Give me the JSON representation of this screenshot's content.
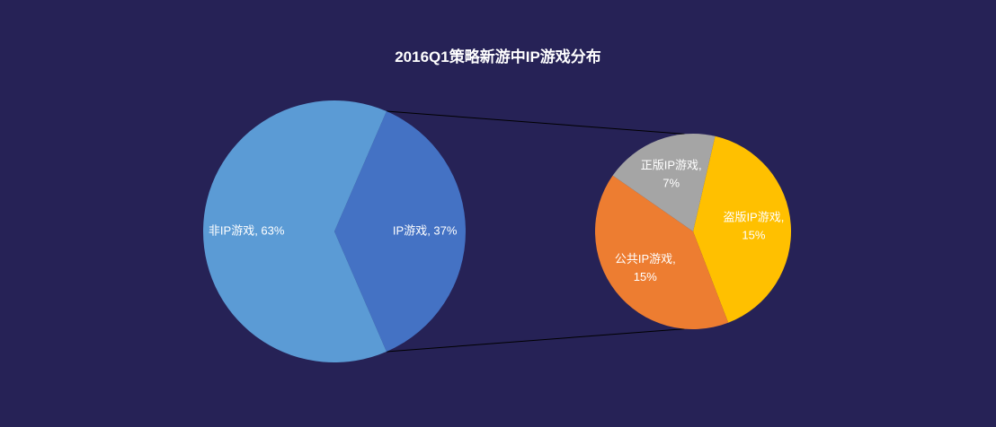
{
  "chart_data": {
    "type": "pie",
    "subtype": "pie-of-pie",
    "title": "2016Q1策略新游中IP游戏分布",
    "primary": {
      "slices": [
        {
          "name": "IP游戏",
          "value": 37,
          "label_line1": "IP游戏, 37%",
          "label_line2": "",
          "color": "#4472C4"
        },
        {
          "name": "非IP游戏",
          "value": 63,
          "label_line1": "非IP游戏, 63%",
          "label_line2": "",
          "color": "#5B9BD5"
        }
      ]
    },
    "secondary": {
      "parent": "IP游戏",
      "slices": [
        {
          "name": "盗版IP游戏",
          "value": 15,
          "label_line1": "盗版IP游戏,",
          "label_line2": "15%",
          "color": "#FFC000"
        },
        {
          "name": "公共IP游戏",
          "value": 15,
          "label_line1": "公共IP游戏,",
          "label_line2": "15%",
          "color": "#ED7D31"
        },
        {
          "name": "正版IP游戏",
          "value": 7,
          "label_line1": "正版IP游戏,",
          "label_line2": "7%",
          "color": "#A5A5A5"
        }
      ]
    },
    "connector_color": "#000000",
    "legend": "none"
  }
}
